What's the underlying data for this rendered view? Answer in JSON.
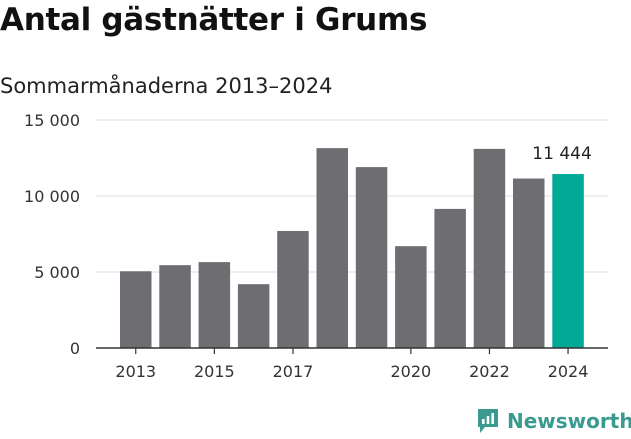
{
  "header": {
    "title": "Antal gästnätter i Grums",
    "subtitle": "Sommarmånaderna 2013–2024"
  },
  "chart_data": {
    "type": "bar",
    "title": "Antal gästnätter i Grums",
    "subtitle": "Sommarmånaderna 2013–2024",
    "xlabel": "",
    "ylabel": "",
    "categories": [
      "2013",
      "2014",
      "2015",
      "2016",
      "2017",
      "2018",
      "2019",
      "2020",
      "2021",
      "2022",
      "2023",
      "2024"
    ],
    "values": [
      5050,
      5450,
      5650,
      4200,
      7700,
      13150,
      11900,
      6700,
      9150,
      13100,
      11150,
      11444
    ],
    "x_tick_labels": [
      "2013",
      "",
      "2015",
      "",
      "2017",
      "",
      "",
      "2020",
      "",
      "2022",
      "",
      "2024"
    ],
    "y_ticks": [
      0,
      5000,
      10000,
      15000
    ],
    "y_tick_labels": [
      "0",
      "5 000",
      "10 000",
      "15 000"
    ],
    "ylim": [
      0,
      15000
    ],
    "grid": true,
    "highlight_index": 11,
    "highlight_label": "11 444",
    "colors": {
      "bar": "#6e6d72",
      "highlight": "#00a896",
      "grid": "#dddddd",
      "axis": "#333333"
    }
  },
  "branding": {
    "name": "Newsworthy",
    "color": "#3a9a8f",
    "icon": "newsworthy-logo-icon"
  }
}
